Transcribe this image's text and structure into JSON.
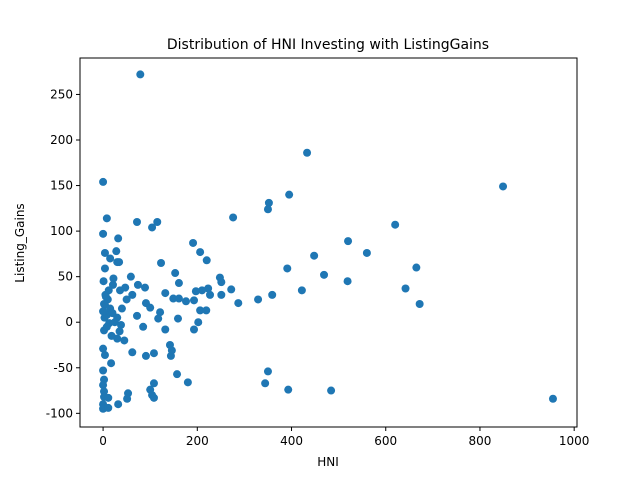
{
  "chart_data": {
    "type": "scatter",
    "title": "Distribution of HNI Investing with ListingGains",
    "x_label": "HNI",
    "y_label": "Listing_Gains",
    "color": "#1f77b4",
    "xlim": [
      -49,
      1006
    ],
    "ylim": [
      -115,
      290
    ],
    "xticks": [
      0,
      200,
      400,
      600,
      800,
      1000
    ],
    "yticks": [
      -100,
      -50,
      0,
      50,
      100,
      150,
      200,
      250
    ],
    "x": [
      79,
      433,
      849,
      955,
      0,
      395,
      352,
      350,
      276,
      620,
      72,
      115,
      104,
      8,
      0,
      32,
      191,
      520,
      206,
      28,
      4,
      560,
      448,
      220,
      15,
      30,
      123,
      34,
      4,
      391,
      665,
      469,
      153,
      59,
      248,
      251,
      519,
      161,
      74,
      89,
      223,
      272,
      210,
      422,
      642,
      197,
      21,
      36,
      47,
      62,
      132,
      227,
      251,
      359,
      149,
      161,
      176,
      193,
      329,
      287,
      672,
      91,
      100,
      121,
      206,
      219,
      159,
      202,
      117,
      72,
      132,
      193,
      85,
      4,
      8,
      13,
      2,
      38,
      30,
      45,
      0,
      4,
      62,
      91,
      108,
      142,
      144,
      146,
      17,
      157,
      350,
      0,
      2,
      0,
      180,
      344,
      108,
      2,
      100,
      393,
      484,
      53,
      2,
      104,
      108,
      51,
      11,
      0,
      32,
      0,
      11,
      5,
      10,
      2,
      15,
      20,
      3,
      25,
      8,
      30,
      12,
      40,
      1,
      50,
      35,
      18,
      6,
      0,
      22
    ],
    "values": [
      272,
      186,
      149,
      -84,
      154,
      140,
      131,
      124,
      115,
      107,
      110,
      110,
      104,
      114,
      97,
      92,
      87,
      89,
      77,
      78,
      76,
      76,
      73,
      68,
      70,
      66,
      65,
      66,
      59,
      59,
      60,
      52,
      54,
      50,
      49,
      44,
      45,
      43,
      41,
      38,
      37,
      36,
      35,
      35,
      37,
      34,
      41,
      35,
      38,
      30,
      32,
      30,
      30,
      30,
      26,
      26,
      23,
      24,
      25,
      21,
      20,
      21,
      16,
      11,
      13,
      13,
      4,
      0,
      4,
      7,
      -8,
      -8,
      -5,
      19,
      8,
      -1,
      -9,
      -3,
      -18,
      -20,
      -29,
      -36,
      -33,
      -37,
      -34,
      -25,
      -37,
      -31,
      -45,
      -57,
      -54,
      -53,
      -63,
      -69,
      -66,
      -67,
      -67,
      -76,
      -74,
      -74,
      -75,
      -78,
      -82,
      -80,
      -83,
      -84,
      -83,
      -90,
      -90,
      -95,
      -94,
      30,
      25,
      20,
      15,
      10,
      5,
      0,
      -5,
      5,
      35,
      15,
      45,
      25,
      -10,
      -15,
      28,
      12,
      48
    ]
  }
}
